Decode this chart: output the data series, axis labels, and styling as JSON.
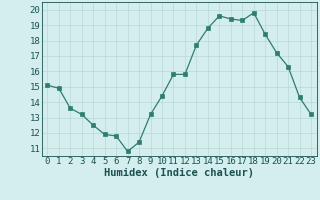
{
  "x": [
    0,
    1,
    2,
    3,
    4,
    5,
    6,
    7,
    8,
    9,
    10,
    11,
    12,
    13,
    14,
    15,
    16,
    17,
    18,
    19,
    20,
    21,
    22,
    23
  ],
  "y": [
    15.1,
    14.9,
    13.6,
    13.2,
    12.5,
    11.9,
    11.8,
    10.8,
    11.4,
    13.2,
    14.4,
    15.8,
    15.8,
    17.7,
    18.8,
    19.6,
    19.4,
    19.3,
    19.8,
    18.4,
    17.2,
    16.3,
    14.3,
    13.2
  ],
  "xlabel": "Humidex (Indice chaleur)",
  "xlim": [
    -0.5,
    23.5
  ],
  "ylim": [
    10.5,
    20.5
  ],
  "yticks": [
    11,
    12,
    13,
    14,
    15,
    16,
    17,
    18,
    19,
    20
  ],
  "xticks": [
    0,
    1,
    2,
    3,
    4,
    5,
    6,
    7,
    8,
    9,
    10,
    11,
    12,
    13,
    14,
    15,
    16,
    17,
    18,
    19,
    20,
    21,
    22,
    23
  ],
  "line_color": "#2e7d6e",
  "marker_color": "#2e7d6e",
  "bg_color": "#d4eeee",
  "grid_color": "#b8d8d8",
  "tick_color": "#1a5050",
  "label_color": "#1a5050",
  "tick_fontsize": 6.5,
  "xlabel_fontsize": 7.5
}
